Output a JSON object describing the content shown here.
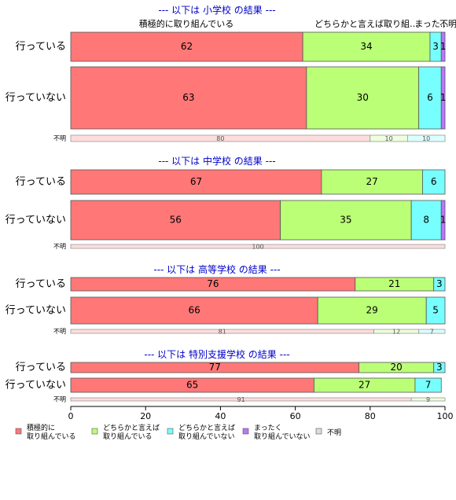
{
  "chart_data": {
    "type": "bar",
    "orientation": "horizontal",
    "stacked": true,
    "xlim": [
      0,
      100
    ],
    "xticks": [
      0,
      20,
      40,
      60,
      80,
      100
    ],
    "top_labels": [
      "積極的に取り組んでいる",
      "どちらかと言えば取り組…",
      "まった…",
      "不明"
    ],
    "series_names": [
      "積極的に\n取り組んでいる",
      "どちらかと言えば\n取り組んでいる",
      "どちらかと言えば\n取り組んでいない",
      "まったく\n取り組んでいない",
      "不明"
    ],
    "colors": [
      "#ff7777",
      "#bbff77",
      "#77ffff",
      "#bb77ff",
      "#dddddd"
    ],
    "sections": [
      {
        "title": "--- 以下は 小学校 の結果 ---",
        "bars": [
          {
            "label": "行っている",
            "values": [
              62,
              34,
              3,
              1,
              0
            ],
            "size": "large"
          },
          {
            "label": "行っていない",
            "values": [
              63,
              30,
              6,
              1,
              0
            ],
            "size": "large"
          },
          {
            "label": "不明",
            "values": [
              80,
              10,
              10,
              0,
              0
            ],
            "size": "small"
          }
        ]
      },
      {
        "title": "--- 以下は 中学校 の結果 ---",
        "bars": [
          {
            "label": "行っている",
            "values": [
              67,
              27,
              6,
              0,
              0
            ],
            "size": "large"
          },
          {
            "label": "行っていない",
            "values": [
              56,
              35,
              8,
              1,
              0
            ],
            "size": "large"
          },
          {
            "label": "不明",
            "values": [
              100,
              0,
              0,
              0,
              0
            ],
            "size": "small"
          }
        ]
      },
      {
        "title": "--- 以下は 高等学校 の結果 ---",
        "bars": [
          {
            "label": "行っている",
            "values": [
              76,
              21,
              3,
              0,
              0
            ],
            "size": "large"
          },
          {
            "label": "行っていない",
            "values": [
              66,
              29,
              5,
              0,
              0
            ],
            "size": "large"
          },
          {
            "label": "不明",
            "values": [
              81,
              12,
              7,
              0,
              0
            ],
            "size": "small"
          }
        ]
      },
      {
        "title": "--- 以下は 特別支援学校 の結果 ---",
        "bars": [
          {
            "label": "行っている",
            "values": [
              77,
              20,
              3,
              0,
              0
            ],
            "size": "large"
          },
          {
            "label": "行っていない",
            "values": [
              65,
              27,
              7,
              0,
              0
            ],
            "size": "large"
          },
          {
            "label": "不明",
            "values": [
              91,
              9,
              0,
              0,
              0
            ],
            "size": "small"
          }
        ]
      }
    ]
  }
}
